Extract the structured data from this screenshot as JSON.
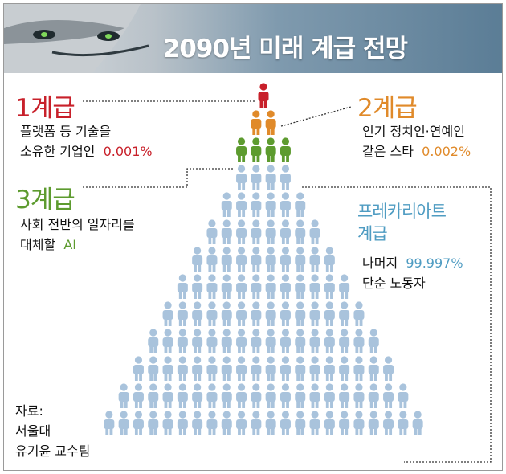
{
  "banner": {
    "title": "2090년 미래 계급 전망"
  },
  "tiers": [
    {
      "title": "1계급",
      "line1": "플랫폼 등 기술을",
      "line2": "소유한 기업인",
      "pct": "0.001%",
      "color": "#c8202a"
    },
    {
      "title": "2계급",
      "line1": "인기 정치인·연예인",
      "line2": "같은 스타",
      "pct": "0.002%",
      "color": "#e08a2a"
    },
    {
      "title": "3계급",
      "line1": "사회 전반의 일자리를",
      "line2": "대체할",
      "pct": "AI",
      "color": "#5d9b2f"
    },
    {
      "title_line1": "프레카리아트",
      "title_line2": "계급",
      "line1_prefix": "나머지",
      "pct": "99.997%",
      "line2": "단순 노동자",
      "color": "#4f9cc2"
    }
  ],
  "source": {
    "line1": "자료:",
    "line2": "서울대",
    "line3": "유기윤 교수팀"
  },
  "pyramid": {
    "row_counts": [
      1,
      2,
      4,
      4,
      6,
      8,
      10,
      12,
      14,
      16,
      18,
      20,
      22
    ],
    "colors": [
      "#c8202a",
      "#e08a2a",
      "#5d9b2f",
      "#a9c3dc"
    ]
  }
}
